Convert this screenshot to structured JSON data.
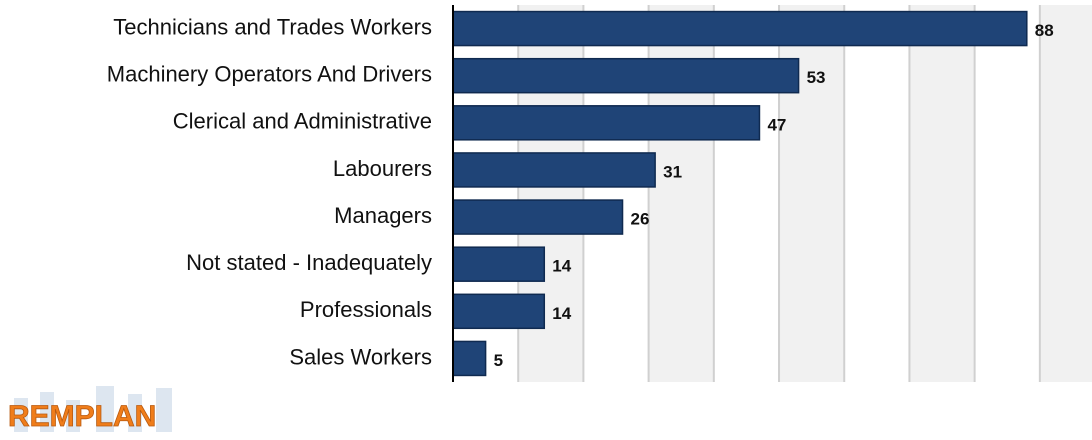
{
  "chart_data": {
    "type": "bar",
    "orientation": "horizontal",
    "categories": [
      "Technicians and Trades Workers",
      "Machinery Operators And Drivers",
      "Clerical and Administrative",
      "Labourers",
      "Managers",
      "Not stated - Inadequately",
      "Professionals",
      "Sales Workers"
    ],
    "values": [
      88,
      53,
      47,
      31,
      26,
      14,
      14,
      5
    ],
    "color": "#1f4477",
    "xlim": [
      0,
      98
    ],
    "xticks": [
      0,
      10,
      20,
      30,
      40,
      50,
      60,
      70,
      80,
      90
    ],
    "grid": true
  },
  "logo": "REMPLAN"
}
